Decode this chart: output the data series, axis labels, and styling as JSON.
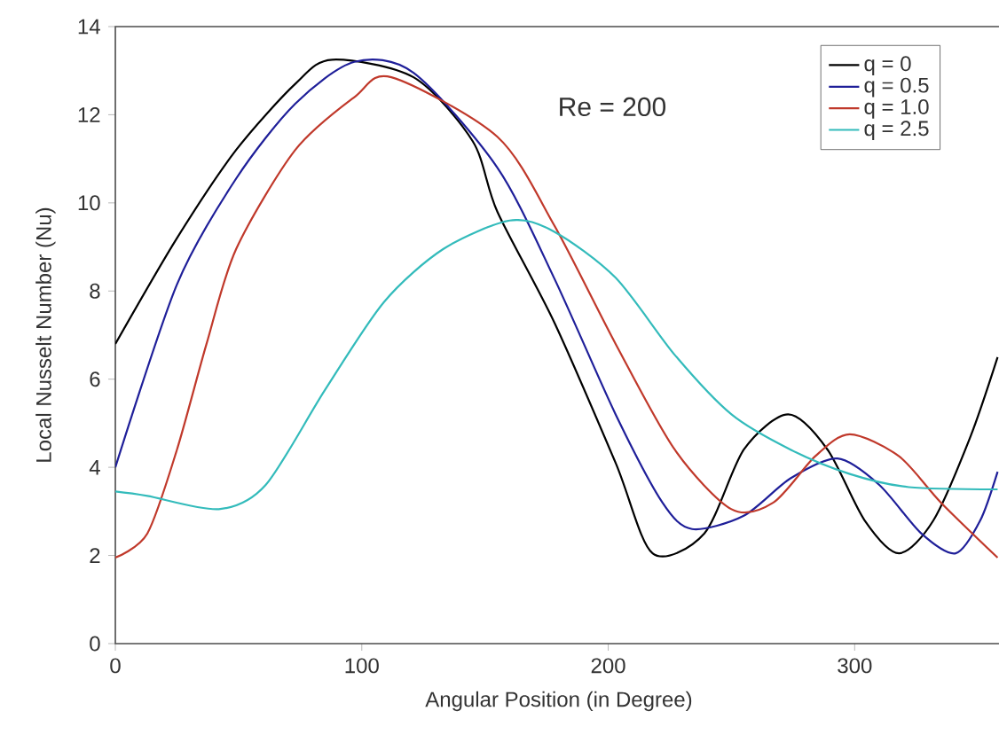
{
  "chart_data": {
    "type": "line",
    "xlabel": "Angular Position (in Degree)",
    "ylabel": "Local Nusselt Number (Nu)",
    "annotations": [
      "Re = 200"
    ],
    "xlim": [
      0,
      360
    ],
    "ylim": [
      0,
      14
    ],
    "xticks": [
      0,
      100,
      200,
      300
    ],
    "yticks": [
      0,
      2,
      4,
      6,
      8,
      10,
      12,
      14
    ],
    "grid": false,
    "legend": "top right",
    "marker": "none",
    "line_style": "solid",
    "series": [
      {
        "name": "q = 0",
        "color": "#000000",
        "x": [
          0,
          25,
          49,
          73,
          88,
          121,
          145,
          155,
          178,
          203,
          218,
          239,
          255,
          273,
          289,
          304,
          318,
          332,
          347,
          358
        ],
        "values": [
          6.8,
          9.2,
          11.2,
          12.7,
          13.25,
          12.85,
          11.4,
          9.8,
          7.3,
          4.1,
          2.05,
          2.5,
          4.4,
          5.2,
          4.4,
          2.8,
          2.05,
          2.8,
          4.7,
          6.5
        ]
      },
      {
        "name": "q = 0.5",
        "color": "#1f1f99",
        "x": [
          0,
          25,
          49,
          73,
          97,
          121,
          155,
          178,
          203,
          222,
          234,
          255,
          274,
          293,
          310,
          327,
          341,
          351,
          358
        ],
        "values": [
          4.0,
          8.15,
          10.55,
          12.25,
          13.2,
          12.95,
          10.8,
          8.3,
          5.2,
          3.2,
          2.6,
          2.9,
          3.75,
          4.2,
          3.6,
          2.5,
          2.05,
          2.8,
          3.9
        ]
      },
      {
        "name": "q = 1.0",
        "color": "#c0392b",
        "x": [
          0,
          13,
          25,
          37,
          49,
          73,
          97,
          112,
          155,
          178,
          203,
          227,
          250,
          267,
          284,
          298,
          318,
          335,
          358
        ],
        "values": [
          1.95,
          2.5,
          4.4,
          6.8,
          8.95,
          11.2,
          12.4,
          12.85,
          11.5,
          9.5,
          6.8,
          4.4,
          3.05,
          3.2,
          4.25,
          4.75,
          4.25,
          3.2,
          1.95
        ]
      },
      {
        "name": "q = 2.5",
        "color": "#33bbbb",
        "x": [
          0,
          13,
          42,
          61,
          85,
          109,
          133,
          160,
          178,
          203,
          227,
          250,
          274,
          298,
          322,
          358
        ],
        "values": [
          3.45,
          3.35,
          3.05,
          3.6,
          5.75,
          7.75,
          8.95,
          9.6,
          9.35,
          8.3,
          6.55,
          5.2,
          4.4,
          3.85,
          3.55,
          3.5
        ]
      }
    ]
  }
}
